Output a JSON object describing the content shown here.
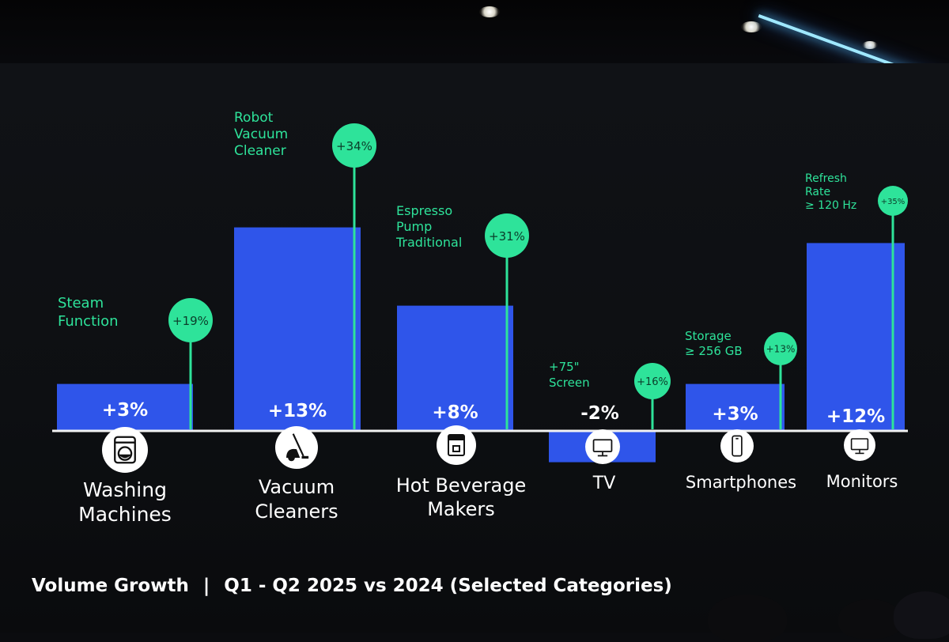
{
  "colors": {
    "bar": "#2f55ea",
    "accent": "#2ee39a",
    "axis": "#f2f2f2",
    "background": "#0b0c0f"
  },
  "footer": {
    "title": "Volume Growth",
    "separator": "|",
    "subtitle": "Q1 - Q2 2025 vs 2024 (Selected Categories)"
  },
  "chart_data": {
    "type": "bar",
    "title": "Volume Growth",
    "subtitle": "Q1 - Q2 2025 vs 2024 (Selected Categories)",
    "unit": "%",
    "categories": [
      "Washing Machines",
      "Vacuum Cleaners",
      "Hot Beverage Makers",
      "TV",
      "Smartphones",
      "Monitors"
    ],
    "series": [
      {
        "values": [
          3,
          13,
          8,
          -2,
          3,
          12
        ]
      }
    ],
    "value_labels": [
      "+3%",
      "+13%",
      "+8%",
      "-2%",
      "+3%",
      "+12%"
    ],
    "highlights": [
      {
        "category": "Washing Machines",
        "feature": "Steam Function",
        "label": "+19%",
        "value": 19
      },
      {
        "category": "Vacuum Cleaners",
        "feature": "Robot Vacuum Cleaner",
        "label": "+34%",
        "value": 34
      },
      {
        "category": "Hot Beverage Makers",
        "feature": "Espresso Pump Traditional",
        "label": "+31%",
        "value": 31
      },
      {
        "category": "TV",
        "feature": "+75\" Screen",
        "label": "+16%",
        "value": 16
      },
      {
        "category": "Smartphones",
        "feature": "Storage ≥ 256 GB",
        "label": "+13%",
        "value": 13
      },
      {
        "category": "Monitors",
        "feature": "Refresh Rate ≥ 120 Hz",
        "label": "+35%",
        "value": 35
      }
    ],
    "icons": [
      "washing-machine-icon",
      "vacuum-cleaner-icon",
      "coffee-machine-icon",
      "tv-icon",
      "smartphone-icon",
      "monitor-icon"
    ],
    "grid": false,
    "legend": "none"
  }
}
